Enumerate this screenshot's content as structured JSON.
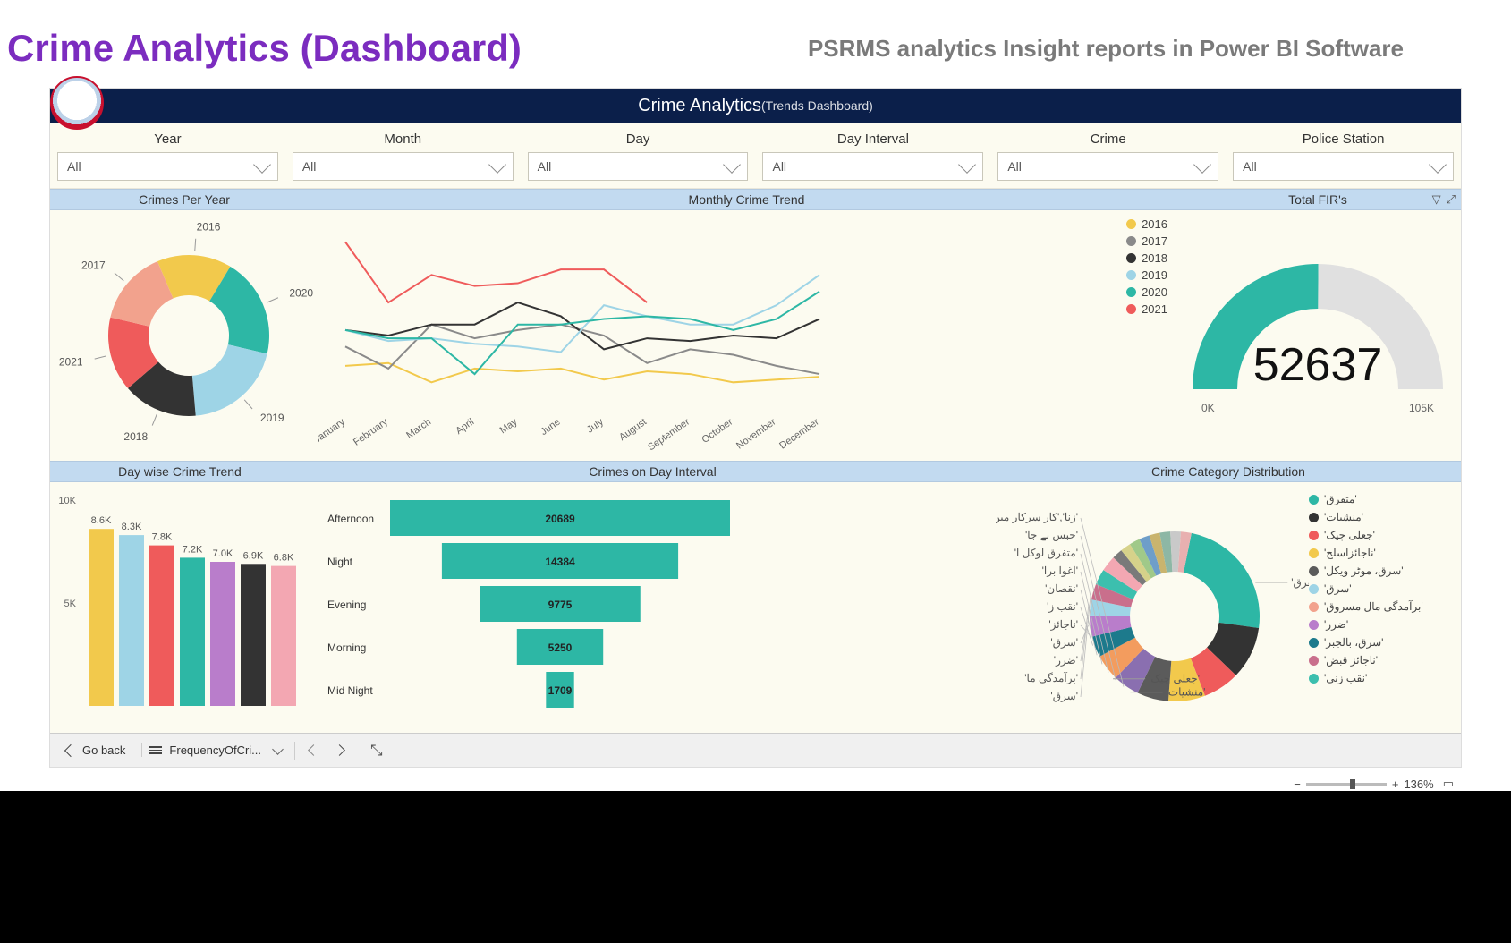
{
  "header": {
    "page_title": "Crime Analytics (Dashboard)",
    "page_subtitle": "PSRMS analytics Insight reports in Power BI Software",
    "dashboard_title": "Crime Analytics",
    "dashboard_subtitle": "(Trends Dashboard)"
  },
  "colors": {
    "title": "#7b2cbf",
    "subtitle": "#7a7a7a",
    "header_bg": "#0b1f4a",
    "panel_bg": "#fcfbf0",
    "section_bar": "#c2daf0",
    "teal": "#2db7a5",
    "yellow": "#f2c94c",
    "dark": "#333333",
    "grey": "#8a8a8a",
    "lightblue": "#9ed4e6",
    "red": "#ef5b5b",
    "salmon": "#f2a28d",
    "orange": "#f39c5e",
    "purple": "#b97dcb",
    "pink": "#f3a7b2"
  },
  "filters": [
    {
      "label": "Year",
      "value": "All"
    },
    {
      "label": "Month",
      "value": "All"
    },
    {
      "label": "Day",
      "value": "All"
    },
    {
      "label": "Day Interval",
      "value": "All"
    },
    {
      "label": "Crime",
      "value": "All"
    },
    {
      "label": "Police Station",
      "value": "All"
    }
  ],
  "crimes_per_year": {
    "title": "Crimes Per Year",
    "type": "donut",
    "slices": [
      {
        "label": "2016",
        "value": 15,
        "color": "#f2c94c"
      },
      {
        "label": "2020",
        "value": 20,
        "color": "#2db7a5"
      },
      {
        "label": "2019",
        "value": 20,
        "color": "#9ed4e6"
      },
      {
        "label": "2018",
        "value": 15,
        "color": "#333333"
      },
      {
        "label": "2021",
        "value": 15,
        "color": "#ef5b5b"
      },
      {
        "label": "2017",
        "value": 15,
        "color": "#f2a28d"
      }
    ]
  },
  "monthly_trend": {
    "title": "Monthly Crime Trend",
    "type": "line",
    "months": [
      "January",
      "February",
      "March",
      "April",
      "May",
      "June",
      "July",
      "August",
      "September",
      "October",
      "November",
      "December"
    ],
    "series": [
      {
        "name": "2016",
        "color": "#f2c94c",
        "values": [
          45,
          46,
          39,
          44,
          43,
          44,
          40,
          43,
          42,
          39,
          40,
          41
        ]
      },
      {
        "name": "2017",
        "color": "#8a8a8a",
        "values": [
          52,
          44,
          60,
          55,
          58,
          60,
          56,
          46,
          51,
          49,
          45,
          42
        ]
      },
      {
        "name": "2018",
        "color": "#333333",
        "values": [
          58,
          56,
          60,
          60,
          68,
          63,
          51,
          55,
          54,
          56,
          55,
          62
        ]
      },
      {
        "name": "2019",
        "color": "#9ed4e6",
        "values": [
          58,
          54,
          55,
          53,
          52,
          50,
          67,
          63,
          60,
          60,
          67,
          78
        ]
      },
      {
        "name": "2020",
        "color": "#2db7a5",
        "values": [
          58,
          55,
          55,
          42,
          60,
          60,
          62,
          63,
          62,
          58,
          62,
          72
        ]
      },
      {
        "name": "2021",
        "color": "#ef5b5b",
        "values": [
          90,
          68,
          78,
          74,
          75,
          80,
          80,
          68,
          56,
          56,
          56,
          56
        ]
      }
    ],
    "series_2021_len": 8,
    "ymin": 30,
    "ymax": 95
  },
  "total_fir": {
    "title": "Total FIR's",
    "type": "gauge",
    "value": 52637,
    "min_label": "0K",
    "max": 105000,
    "max_label": "105K",
    "fill_color": "#2db7a5",
    "empty_color": "#e0e0e0"
  },
  "daywise": {
    "title": "Day wise Crime Trend",
    "type": "bar",
    "ytick_labels": [
      "5K",
      "10K"
    ],
    "ytick_values": [
      5000,
      10000
    ],
    "ymax": 10000,
    "bars": [
      {
        "label": "8.6K",
        "value": 8600,
        "color": "#f2c94c"
      },
      {
        "label": "8.3K",
        "value": 8300,
        "color": "#9ed4e6"
      },
      {
        "label": "7.8K",
        "value": 7800,
        "color": "#ef5b5b"
      },
      {
        "label": "7.2K",
        "value": 7200,
        "color": "#2db7a5"
      },
      {
        "label": "7.0K",
        "value": 7000,
        "color": "#b97dcb"
      },
      {
        "label": "6.9K",
        "value": 6900,
        "color": "#333333"
      },
      {
        "label": "6.8K",
        "value": 6800,
        "color": "#f3a7b2"
      }
    ]
  },
  "day_interval": {
    "title": "Crimes on Day Interval",
    "type": "funnel",
    "color": "#2db7a5",
    "rows": [
      {
        "label": "Afternoon",
        "value": 20689
      },
      {
        "label": "Night",
        "value": 14384
      },
      {
        "label": "Evening",
        "value": 9775
      },
      {
        "label": "Morning",
        "value": 5250
      },
      {
        "label": "Mid Night",
        "value": 1709
      }
    ]
  },
  "category": {
    "title": "Crime Category Distribution",
    "type": "donut",
    "callouts": [
      "'زنا','کار سرکار میں مزاحمت'",
      "'حبس بے جا'",
      "'متفرق لوکل ا'",
      "'اغوا برا'",
      "'نقصان'",
      "'نقب ز'",
      "'ناجائز'",
      "'سرق'",
      "'ضرر'",
      "'برآمدگی ما'",
      "'سرق'",
      "'جعلی چیک'",
      "'منشیات'",
      "'متفرق'"
    ],
    "legend": [
      {
        "label": "'متفرق'",
        "color": "#2db7a5"
      },
      {
        "label": "'منشیات'",
        "color": "#333333"
      },
      {
        "label": "'جعلی چیک'",
        "color": "#ef5b5b"
      },
      {
        "label": "'ناجائزاسلح'",
        "color": "#f2c94c"
      },
      {
        "label": "'سرق، موٹر ویکل'",
        "color": "#5b5b5b"
      },
      {
        "label": "'سرق'",
        "color": "#9ed4e6"
      },
      {
        "label": "'برآمدگی مال مسروق'",
        "color": "#f2a28d"
      },
      {
        "label": "'ضرر'",
        "color": "#b97dcb"
      },
      {
        "label": "'سرق، بالجبر'",
        "color": "#1d7a8c"
      },
      {
        "label": "'ناجائز قبض'",
        "color": "#c96f8c"
      },
      {
        "label": "'نقب زنی'",
        "color": "#3cbfae"
      }
    ],
    "slices": [
      {
        "value": 24,
        "color": "#2db7a5"
      },
      {
        "value": 10,
        "color": "#333333"
      },
      {
        "value": 7,
        "color": "#ef5b5b"
      },
      {
        "value": 7,
        "color": "#f2c94c"
      },
      {
        "value": 6,
        "color": "#5b5b5b"
      },
      {
        "value": 5,
        "color": "#8a6fb0"
      },
      {
        "value": 5,
        "color": "#f39c5e"
      },
      {
        "value": 4,
        "color": "#1d7a8c"
      },
      {
        "value": 4,
        "color": "#b97dcb"
      },
      {
        "value": 3,
        "color": "#9ed4e6"
      },
      {
        "value": 3,
        "color": "#c96f8c"
      },
      {
        "value": 3,
        "color": "#3cbfae"
      },
      {
        "value": 3,
        "color": "#f3a7b2"
      },
      {
        "value": 2,
        "color": "#7a7a7a"
      },
      {
        "value": 2,
        "color": "#d6d28a"
      },
      {
        "value": 2,
        "color": "#a0c989"
      },
      {
        "value": 2,
        "color": "#6e9ec9"
      },
      {
        "value": 2,
        "color": "#c9b46e"
      },
      {
        "value": 2,
        "color": "#8db7a5"
      },
      {
        "value": 2,
        "color": "#c9c9c9"
      },
      {
        "value": 2,
        "color": "#e8b0b0"
      }
    ]
  },
  "footer": {
    "back_label": "Go back",
    "breadcrumb": "FrequencyOfCri...",
    "zoom_label": "136%"
  }
}
